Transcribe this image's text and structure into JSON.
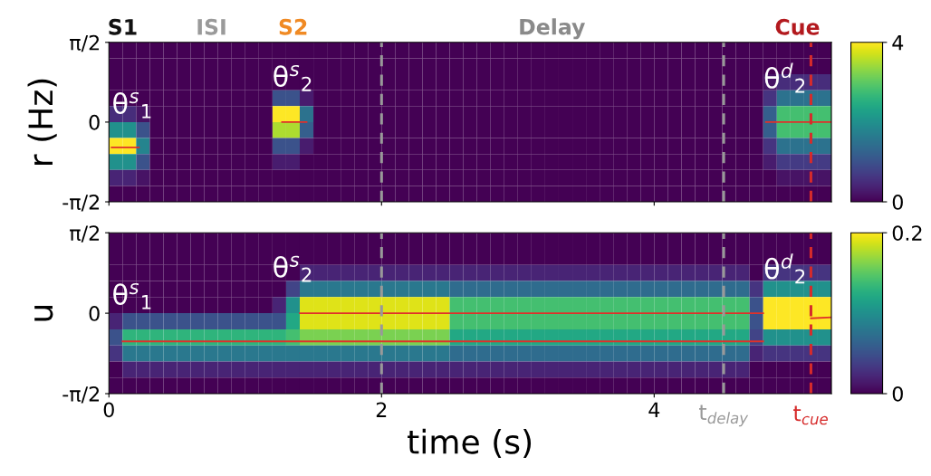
{
  "chart_data": [
    {
      "type": "heatmap",
      "ylabel": "r (Hz)",
      "tick_labels": "y",
      "x": [
        0.05,
        0.15,
        0.25,
        0.35,
        0.45,
        0.55,
        0.65,
        0.75,
        0.85,
        0.95,
        1.05,
        1.15,
        1.25,
        1.35,
        1.45,
        1.55,
        1.65,
        1.75,
        1.85,
        1.95,
        2.05,
        2.15,
        2.25,
        2.35,
        2.45,
        2.55,
        2.65,
        2.75,
        2.85,
        2.95,
        3.05,
        3.15,
        3.25,
        3.35,
        3.45,
        3.55,
        3.65,
        3.75,
        3.85,
        3.95,
        4.05,
        4.15,
        4.25,
        4.35,
        4.45,
        4.55,
        4.65,
        4.75,
        4.85,
        4.95,
        5.05,
        5.15,
        5.25
      ],
      "xlim": [
        0,
        5.3
      ],
      "xticks": [
        0,
        2,
        4
      ],
      "ylim": [
        -1.5708,
        1.5708
      ],
      "yticks": [
        {
          "value": -1.5708,
          "label": "-π/2"
        },
        {
          "value": 0,
          "label": "0"
        },
        {
          "value": 1.5708,
          "label": "π/2"
        }
      ],
      "clim": [
        0,
        4
      ],
      "cticks": [
        0,
        4
      ],
      "cells": [
        [
          0,
          0,
          0,
          0,
          0,
          0,
          0,
          0,
          0,
          0,
          0,
          0,
          0,
          0,
          0,
          0,
          0,
          0,
          0,
          0,
          0,
          0,
          0,
          0,
          0,
          0,
          0,
          0,
          0,
          0,
          0,
          0,
          0,
          0,
          0,
          0,
          0,
          0,
          0,
          0,
          0,
          0,
          0,
          0,
          0,
          0,
          0,
          0,
          0,
          0,
          0,
          0,
          0
        ],
        [
          0,
          0,
          0,
          0,
          0,
          0,
          0,
          0,
          0,
          0,
          0,
          0,
          0,
          0,
          0,
          0,
          0,
          0,
          0,
          0,
          0,
          0,
          0,
          0,
          0,
          0,
          0,
          0,
          0,
          0,
          0,
          0,
          0,
          0,
          0,
          0,
          0,
          0,
          0,
          0,
          0,
          0,
          0,
          0,
          0,
          0,
          0,
          0,
          0,
          0,
          0,
          0,
          0
        ],
        [
          0,
          0,
          0,
          0,
          0,
          0,
          0,
          0,
          0,
          0,
          0,
          0,
          0,
          0,
          0,
          0,
          0,
          0,
          0,
          0,
          0,
          0,
          0,
          0,
          0,
          0,
          0,
          0,
          0,
          0,
          0,
          0,
          0,
          0,
          0,
          0,
          0,
          0,
          0,
          0,
          0,
          0,
          0,
          0,
          0,
          0,
          0,
          0,
          0.2,
          0.5,
          0.5,
          0.5,
          0.5
        ],
        [
          0,
          0,
          0,
          0,
          0,
          0,
          0,
          0,
          0,
          0,
          0,
          0,
          1,
          1,
          0.3,
          0,
          0,
          0,
          0,
          0,
          0,
          0,
          0,
          0,
          0,
          0,
          0,
          0,
          0,
          0,
          0,
          0,
          0,
          0,
          0,
          0,
          0,
          0,
          0,
          0,
          0,
          0,
          0,
          0,
          0,
          0,
          0,
          0,
          0.6,
          1.5,
          1.5,
          1.5,
          1.5
        ],
        [
          0.5,
          0.5,
          0.2,
          0,
          0,
          0,
          0,
          0,
          0,
          0,
          0,
          0,
          4,
          4,
          1.5,
          0,
          0,
          0,
          0,
          0,
          0,
          0,
          0,
          0,
          0,
          0,
          0,
          0,
          0,
          0,
          0,
          0,
          0,
          0,
          0,
          0,
          0,
          0,
          0,
          0,
          0,
          0,
          0,
          0,
          0,
          0,
          0,
          0,
          1.2,
          2.8,
          2.8,
          2.8,
          2.8
        ],
        [
          2,
          2,
          1,
          0,
          0,
          0,
          0,
          0,
          0,
          0,
          0,
          0,
          3.5,
          3.5,
          1.2,
          0,
          0,
          0,
          0,
          0,
          0,
          0,
          0,
          0,
          0,
          0,
          0,
          0,
          0,
          0,
          0,
          0,
          0,
          0,
          0,
          0,
          0,
          0,
          0,
          0,
          0,
          0,
          0,
          0,
          0,
          0,
          0,
          0,
          1.2,
          2.8,
          2.8,
          2.8,
          2.8
        ],
        [
          4,
          4,
          1.8,
          0,
          0,
          0,
          0,
          0,
          0,
          0,
          0,
          0,
          1,
          1,
          0.3,
          0,
          0,
          0,
          0,
          0,
          0,
          0,
          0,
          0,
          0,
          0,
          0,
          0,
          0,
          0,
          0,
          0,
          0,
          0,
          0,
          0,
          0,
          0,
          0,
          0,
          0,
          0,
          0,
          0,
          0,
          0,
          0,
          0,
          0.6,
          1.5,
          1.5,
          1.5,
          1.5
        ],
        [
          2,
          2,
          1,
          0,
          0,
          0,
          0,
          0,
          0,
          0,
          0,
          0,
          0.3,
          0.3,
          0,
          0,
          0,
          0,
          0,
          0,
          0,
          0,
          0,
          0,
          0,
          0,
          0,
          0,
          0,
          0,
          0,
          0,
          0,
          0,
          0,
          0,
          0,
          0,
          0,
          0,
          0,
          0,
          0,
          0,
          0,
          0,
          0,
          0,
          0.3,
          0.7,
          0.7,
          0.7,
          0.7
        ],
        [
          0.4,
          0.4,
          0.2,
          0,
          0,
          0,
          0,
          0,
          0,
          0,
          0,
          0,
          0,
          0,
          0,
          0,
          0,
          0,
          0,
          0,
          0,
          0,
          0,
          0,
          0,
          0,
          0,
          0,
          0,
          0,
          0,
          0,
          0,
          0,
          0,
          0,
          0,
          0,
          0,
          0,
          0,
          0,
          0,
          0,
          0,
          0,
          0,
          0,
          0,
          0.2,
          0.2,
          0.2,
          0.2
        ],
        [
          0,
          0,
          0,
          0,
          0,
          0,
          0,
          0,
          0,
          0,
          0,
          0,
          0,
          0,
          0,
          0,
          0,
          0,
          0,
          0,
          0,
          0,
          0,
          0,
          0,
          0,
          0,
          0,
          0,
          0,
          0,
          0,
          0,
          0,
          0,
          0,
          0,
          0,
          0,
          0,
          0,
          0,
          0,
          0,
          0,
          0,
          0,
          0,
          0,
          0,
          0,
          0,
          0
        ]
      ],
      "series": [
        {
          "type": "line",
          "color": "#e0302a",
          "x": [
            0.02,
            0.22
          ],
          "values": [
            -0.5,
            -0.5
          ]
        },
        {
          "type": "line",
          "color": "#e0302a",
          "x": [
            1.27,
            1.45
          ],
          "values": [
            0,
            0
          ]
        },
        {
          "type": "line",
          "color": "#e0302a",
          "x": [
            4.82,
            5.3
          ],
          "values": [
            0,
            0
          ]
        }
      ],
      "ref_lines": [
        {
          "axis": "x",
          "value": 2,
          "color": "#999999",
          "line_style": "dashed"
        },
        {
          "axis": "x",
          "value": 4.51,
          "color": "#999999",
          "line_style": "dashed"
        },
        {
          "axis": "x",
          "value": 5.15,
          "color": "#d62b2b",
          "line_style": "dashed"
        }
      ],
      "annotations": [
        "S1",
        "ISI",
        "S2",
        "Delay",
        "Cue",
        "θ$^{s}$$_{1}$",
        "θ$^{s}$$_{2}$",
        "θ$^{d}$$_{2}$"
      ]
    },
    {
      "type": "heatmap",
      "ylabel": "u",
      "xlabel": "time (s)",
      "x": [
        0.05,
        0.15,
        0.25,
        0.35,
        0.45,
        0.55,
        0.65,
        0.75,
        0.85,
        0.95,
        1.05,
        1.15,
        1.25,
        1.35,
        1.45,
        1.55,
        1.65,
        1.75,
        1.85,
        1.95,
        2.05,
        2.15,
        2.25,
        2.35,
        2.45,
        2.55,
        2.65,
        2.75,
        2.85,
        2.95,
        3.05,
        3.15,
        3.25,
        3.35,
        3.45,
        3.55,
        3.65,
        3.75,
        3.85,
        3.95,
        4.05,
        4.15,
        4.25,
        4.35,
        4.45,
        4.55,
        4.65,
        4.75,
        4.85,
        4.95,
        5.05,
        5.15,
        5.25
      ],
      "xlim": [
        0,
        5.3
      ],
      "xticks": [
        0,
        2,
        4
      ],
      "ylim": [
        -1.5708,
        1.5708
      ],
      "yticks": [
        {
          "value": -1.5708,
          "label": "-π/2"
        },
        {
          "value": 0,
          "label": "0"
        },
        {
          "value": 1.5708,
          "label": "π/2"
        }
      ],
      "clim": [
        0,
        0.2
      ],
      "cticks": [
        0,
        0.2
      ],
      "cells": [
        [
          0,
          0,
          0,
          0,
          0,
          0,
          0,
          0,
          0,
          0,
          0,
          0,
          0,
          0,
          0,
          0,
          0,
          0,
          0,
          0,
          0,
          0,
          0,
          0,
          0,
          0,
          0,
          0,
          0,
          0,
          0,
          0,
          0,
          0,
          0,
          0,
          0,
          0,
          0,
          0,
          0,
          0,
          0,
          0,
          0,
          0,
          0,
          0,
          0,
          0,
          0,
          0,
          0
        ],
        [
          0,
          0,
          0,
          0,
          0,
          0,
          0,
          0,
          0,
          0,
          0,
          0,
          0,
          0,
          0,
          0,
          0,
          0,
          0,
          0,
          0,
          0,
          0,
          0,
          0,
          0,
          0,
          0,
          0,
          0,
          0,
          0,
          0,
          0,
          0,
          0,
          0,
          0,
          0,
          0,
          0,
          0,
          0,
          0,
          0,
          0,
          0,
          0,
          0,
          0,
          0,
          0,
          0
        ],
        [
          0,
          0,
          0,
          0,
          0,
          0,
          0,
          0,
          0,
          0,
          0,
          0,
          0,
          0,
          0.02,
          0.02,
          0.02,
          0.02,
          0.02,
          0.02,
          0.02,
          0.02,
          0.02,
          0.02,
          0.02,
          0.02,
          0.02,
          0.02,
          0.02,
          0.02,
          0.02,
          0.02,
          0.02,
          0.02,
          0.02,
          0.02,
          0.02,
          0.02,
          0.02,
          0.02,
          0.02,
          0.02,
          0.02,
          0.02,
          0.02,
          0.02,
          0.02,
          0,
          0.03,
          0.03,
          0.03,
          0.03,
          0.03
        ],
        [
          0,
          0,
          0,
          0,
          0,
          0,
          0,
          0,
          0,
          0,
          0,
          0,
          0,
          0.04,
          0.08,
          0.08,
          0.08,
          0.08,
          0.08,
          0.08,
          0.08,
          0.08,
          0.08,
          0.08,
          0.08,
          0.07,
          0.07,
          0.07,
          0.07,
          0.07,
          0.07,
          0.07,
          0.07,
          0.07,
          0.07,
          0.07,
          0.07,
          0.07,
          0.07,
          0.07,
          0.07,
          0.07,
          0.07,
          0.07,
          0.07,
          0.07,
          0.07,
          0.03,
          0.1,
          0.1,
          0.1,
          0.1,
          0.1
        ],
        [
          0,
          0,
          0,
          0,
          0,
          0,
          0,
          0,
          0,
          0,
          0,
          0,
          0.02,
          0.1,
          0.19,
          0.19,
          0.19,
          0.19,
          0.19,
          0.19,
          0.19,
          0.19,
          0.19,
          0.19,
          0.19,
          0.14,
          0.14,
          0.14,
          0.14,
          0.14,
          0.14,
          0.14,
          0.14,
          0.14,
          0.14,
          0.14,
          0.14,
          0.14,
          0.14,
          0.14,
          0.14,
          0.14,
          0.14,
          0.14,
          0.14,
          0.14,
          0.14,
          0.05,
          0.2,
          0.2,
          0.2,
          0.2,
          0.2
        ],
        [
          0.02,
          0.05,
          0.05,
          0.05,
          0.05,
          0.05,
          0.05,
          0.05,
          0.05,
          0.05,
          0.05,
          0.05,
          0.05,
          0.12,
          0.19,
          0.19,
          0.19,
          0.19,
          0.19,
          0.19,
          0.19,
          0.19,
          0.19,
          0.19,
          0.19,
          0.14,
          0.14,
          0.14,
          0.14,
          0.14,
          0.14,
          0.14,
          0.14,
          0.14,
          0.14,
          0.14,
          0.14,
          0.14,
          0.14,
          0.14,
          0.14,
          0.14,
          0.14,
          0.14,
          0.14,
          0.14,
          0.14,
          0.05,
          0.2,
          0.2,
          0.2,
          0.2,
          0.2
        ],
        [
          0.05,
          0.13,
          0.13,
          0.13,
          0.13,
          0.13,
          0.13,
          0.13,
          0.13,
          0.13,
          0.13,
          0.13,
          0.13,
          0.14,
          0.16,
          0.16,
          0.16,
          0.16,
          0.16,
          0.16,
          0.16,
          0.16,
          0.16,
          0.16,
          0.16,
          0.12,
          0.12,
          0.12,
          0.12,
          0.12,
          0.12,
          0.12,
          0.12,
          0.12,
          0.12,
          0.12,
          0.12,
          0.12,
          0.12,
          0.12,
          0.12,
          0.12,
          0.12,
          0.12,
          0.12,
          0.12,
          0.12,
          0.04,
          0.1,
          0.1,
          0.1,
          0.1,
          0.1
        ],
        [
          0.03,
          0.08,
          0.08,
          0.08,
          0.08,
          0.08,
          0.08,
          0.08,
          0.08,
          0.08,
          0.08,
          0.08,
          0.08,
          0.08,
          0.08,
          0.08,
          0.08,
          0.08,
          0.08,
          0.08,
          0.08,
          0.08,
          0.08,
          0.08,
          0.08,
          0.07,
          0.07,
          0.07,
          0.07,
          0.07,
          0.07,
          0.07,
          0.07,
          0.07,
          0.07,
          0.07,
          0.07,
          0.07,
          0.07,
          0.07,
          0.07,
          0.07,
          0.07,
          0.07,
          0.07,
          0.07,
          0.07,
          0.02,
          0.03,
          0.03,
          0.03,
          0.03,
          0.03
        ],
        [
          0,
          0.02,
          0.02,
          0.02,
          0.02,
          0.02,
          0.02,
          0.02,
          0.02,
          0.02,
          0.02,
          0.02,
          0.02,
          0.02,
          0.02,
          0.02,
          0.02,
          0.02,
          0.02,
          0.02,
          0.02,
          0.02,
          0.02,
          0.02,
          0.02,
          0.02,
          0.02,
          0.02,
          0.02,
          0.02,
          0.02,
          0.02,
          0.02,
          0.02,
          0.02,
          0.02,
          0.02,
          0.02,
          0.02,
          0.02,
          0.02,
          0.02,
          0.02,
          0.02,
          0.02,
          0.02,
          0.02,
          0,
          0,
          0,
          0,
          0,
          0
        ],
        [
          0,
          0,
          0,
          0,
          0,
          0,
          0,
          0,
          0,
          0,
          0,
          0,
          0,
          0,
          0,
          0,
          0,
          0,
          0,
          0,
          0,
          0,
          0,
          0,
          0,
          0,
          0,
          0,
          0,
          0,
          0,
          0,
          0,
          0,
          0,
          0,
          0,
          0,
          0,
          0,
          0,
          0,
          0,
          0,
          0,
          0,
          0,
          0,
          0,
          0,
          0,
          0,
          0
        ]
      ],
      "series": [
        {
          "type": "line",
          "color": "#e0302a",
          "x": [
            0.1,
            4.8
          ],
          "values": [
            -0.55,
            -0.55
          ]
        },
        {
          "type": "line",
          "color": "#e0302a",
          "x": [
            1.4,
            4.8
          ],
          "values": [
            0,
            0
          ]
        },
        {
          "type": "line",
          "color": "#e0302a",
          "x": [
            5.15,
            5.3
          ],
          "values": [
            -0.1,
            -0.08
          ]
        }
      ],
      "ref_lines": [
        {
          "axis": "x",
          "value": 2,
          "color": "#999999",
          "line_style": "dashed"
        },
        {
          "axis": "x",
          "value": 4.51,
          "color": "#999999",
          "line_style": "dashed",
          "label": "t$_{delay}$"
        },
        {
          "axis": "x",
          "value": 5.15,
          "color": "#d62b2b",
          "line_style": "dashed",
          "label": "t$_{cue}$"
        }
      ],
      "annotations": [
        "θ$^{s}$$_{1}$",
        "θ$^{s}$$_{2}$",
        "θ$^{d}$$_{2}$"
      ]
    }
  ]
}
